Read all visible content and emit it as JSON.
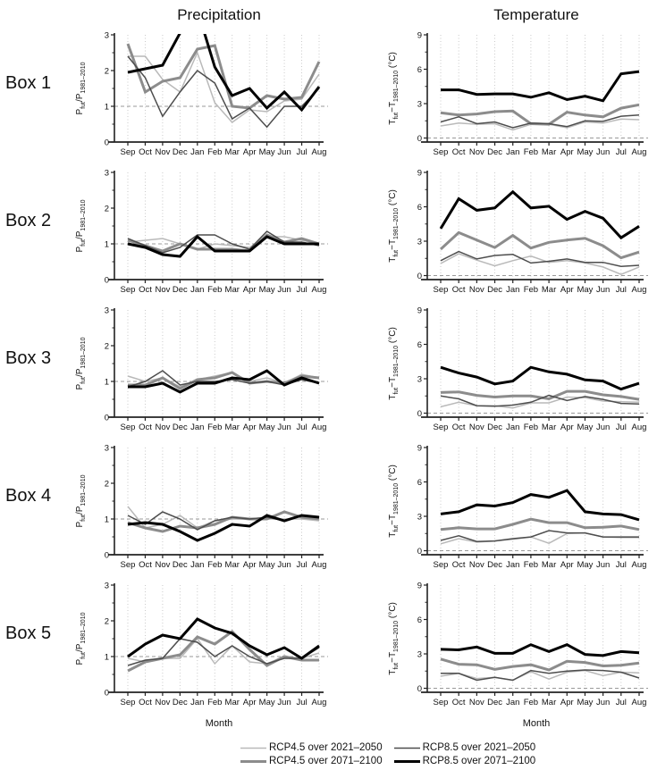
{
  "columns": {
    "left_title": "Precipitation",
    "right_title": "Temperature"
  },
  "rows": [
    "Box 1",
    "Box 2",
    "Box 3",
    "Box 4",
    "Box 5"
  ],
  "xlabel": "Month",
  "months": [
    "Sep",
    "Oct",
    "Nov",
    "Dec",
    "Jan",
    "Feb",
    "Mar",
    "Apr",
    "May",
    "Jun",
    "Jul",
    "Aug"
  ],
  "colors": {
    "rcp45_2021_2050": "#b9b9b9",
    "rcp45_2071_2100": "#8c8c8c",
    "rcp85_2021_2050": "#4d4d4d",
    "rcp85_2071_2100": "#000000",
    "gridline": "#c4c4c4",
    "refline": "#999999",
    "axis": "#222222"
  },
  "legend": {
    "items": [
      {
        "label": "RCP4.5 over 2021–2050",
        "color": "#b9b9b9",
        "width": 1.5
      },
      {
        "label": "RCP4.5 over 2071–2100",
        "color": "#8c8c8c",
        "width": 3
      },
      {
        "label": "RCP8.5 over 2021–2050",
        "color": "#4d4d4d",
        "width": 1.5
      },
      {
        "label": "RCP8.5 over 2071–2100",
        "color": "#000000",
        "width": 3
      }
    ]
  },
  "axes": {
    "precip": {
      "ylabel_segments": [
        {
          "t": "P"
        },
        {
          "t": "fut",
          "sub": true
        },
        {
          "t": "/P"
        },
        {
          "t": "1981–2010",
          "sub": true
        }
      ],
      "ylim": [
        0,
        3
      ],
      "yticks": [
        0,
        1,
        2,
        3
      ],
      "yminor": [
        0.5,
        1.5,
        2.5
      ],
      "refline": 1
    },
    "temp": {
      "ylabel_segments": [
        {
          "t": "T"
        },
        {
          "t": "fut",
          "sub": true
        },
        {
          "t": "−T"
        },
        {
          "t": "1981–2010",
          "sub": true
        },
        {
          "t": " (°C)"
        }
      ],
      "ylim": [
        -0.35,
        9
      ],
      "yticks": [
        0,
        3,
        6,
        9
      ],
      "yminor": [
        1.5,
        4.5,
        7.5
      ],
      "refline": 0
    }
  },
  "chart_data": [
    {
      "box": "Box 1",
      "panel": "Precipitation",
      "type": "line",
      "axis": "precip",
      "series": [
        {
          "name": "RCP4.5 over 2021–2050",
          "values": [
            2.4,
            2.4,
            1.75,
            1.4,
            2.5,
            1.1,
            0.55,
            0.9,
            0.85,
            1.15,
            1.2,
            1.9
          ]
        },
        {
          "name": "RCP4.5 over 2071–2100",
          "values": [
            2.75,
            1.4,
            1.7,
            1.8,
            2.6,
            2.7,
            1.0,
            0.95,
            1.3,
            1.2,
            1.25,
            2.25
          ]
        },
        {
          "name": "RCP8.5 over 2021–2050",
          "values": [
            2.4,
            1.8,
            0.72,
            1.4,
            2.0,
            1.65,
            0.65,
            0.95,
            0.42,
            1.0,
            1.0,
            1.5
          ]
        },
        {
          "name": "RCP8.5 over 2071–2100",
          "values": [
            1.95,
            2.05,
            2.15,
            3.05,
            3.7,
            2.1,
            1.3,
            1.5,
            0.95,
            1.4,
            0.9,
            1.55
          ]
        }
      ]
    },
    {
      "box": "Box 1",
      "panel": "Temperature",
      "type": "line",
      "axis": "temp",
      "series": [
        {
          "name": "RCP4.5 over 2021–2050",
          "values": [
            1.05,
            1.3,
            1.2,
            1.25,
            0.7,
            1.2,
            1.2,
            0.9,
            1.4,
            1.3,
            1.65,
            1.6
          ]
        },
        {
          "name": "RCP4.5 over 2071–2100",
          "values": [
            2.2,
            2.0,
            2.1,
            2.3,
            2.35,
            1.25,
            1.2,
            2.25,
            2.0,
            1.85,
            2.6,
            2.9
          ]
        },
        {
          "name": "RCP8.5 over 2021–2050",
          "values": [
            1.4,
            1.85,
            1.25,
            1.4,
            0.9,
            1.3,
            1.25,
            1.0,
            1.5,
            1.45,
            1.9,
            2.0
          ]
        },
        {
          "name": "RCP8.5 over 2071–2100",
          "values": [
            4.2,
            4.2,
            3.8,
            3.85,
            3.85,
            3.55,
            3.95,
            3.35,
            3.65,
            3.25,
            5.6,
            5.8
          ]
        }
      ]
    },
    {
      "box": "Box 2",
      "panel": "Precipitation",
      "type": "line",
      "axis": "precip",
      "series": [
        {
          "name": "RCP4.5 over 2021–2050",
          "values": [
            1.05,
            1.1,
            1.15,
            1.0,
            0.85,
            1.0,
            0.95,
            0.9,
            1.2,
            1.2,
            1.1,
            1.0
          ]
        },
        {
          "name": "RCP4.5 over 2071–2100",
          "values": [
            1.1,
            0.95,
            0.8,
            1.0,
            0.85,
            0.85,
            0.85,
            0.8,
            1.25,
            1.05,
            1.15,
            1.0
          ]
        },
        {
          "name": "RCP8.5 over 2021–2050",
          "values": [
            1.15,
            0.95,
            0.75,
            0.9,
            1.25,
            1.25,
            1.0,
            0.85,
            1.35,
            1.05,
            1.05,
            0.95
          ]
        },
        {
          "name": "RCP8.5 over 2071–2100",
          "values": [
            1.0,
            0.9,
            0.7,
            0.65,
            1.2,
            0.8,
            0.8,
            0.8,
            1.2,
            1.0,
            1.0,
            1.0
          ]
        }
      ]
    },
    {
      "box": "Box 2",
      "panel": "Temperature",
      "type": "line",
      "axis": "temp",
      "series": [
        {
          "name": "RCP4.5 over 2021–2050",
          "values": [
            1.05,
            1.9,
            1.35,
            0.85,
            1.3,
            1.7,
            1.15,
            1.3,
            1.1,
            0.75,
            0.1,
            0.75
          ]
        },
        {
          "name": "RCP4.5 over 2071–2100",
          "values": [
            2.3,
            3.75,
            3.1,
            2.45,
            3.5,
            2.4,
            2.9,
            3.1,
            3.25,
            2.6,
            1.55,
            2.05
          ]
        },
        {
          "name": "RCP8.5 over 2021–2050",
          "values": [
            1.3,
            2.1,
            1.45,
            1.75,
            1.85,
            1.1,
            1.25,
            1.45,
            1.15,
            1.15,
            0.8,
            0.9
          ]
        },
        {
          "name": "RCP8.5 over 2071–2100",
          "values": [
            4.1,
            6.7,
            5.7,
            5.9,
            7.3,
            5.9,
            6.05,
            4.9,
            5.6,
            5.0,
            3.3,
            4.3
          ]
        }
      ]
    },
    {
      "box": "Box 3",
      "panel": "Precipitation",
      "type": "line",
      "axis": "precip",
      "series": [
        {
          "name": "RCP4.5 over 2021–2050",
          "values": [
            1.15,
            1.0,
            1.1,
            0.85,
            1.05,
            1.15,
            1.25,
            1.0,
            1.1,
            0.95,
            1.2,
            1.1
          ]
        },
        {
          "name": "RCP4.5 over 2071–2100",
          "values": [
            0.9,
            0.9,
            1.1,
            0.8,
            1.05,
            1.1,
            1.25,
            0.95,
            1.0,
            0.95,
            1.15,
            1.1
          ]
        },
        {
          "name": "RCP8.5 over 2021–2050",
          "values": [
            0.85,
            1.0,
            1.3,
            0.9,
            1.0,
            1.0,
            1.05,
            0.95,
            1.0,
            0.9,
            1.05,
            0.95
          ]
        },
        {
          "name": "RCP8.5 over 2071–2100",
          "values": [
            0.85,
            0.85,
            0.95,
            0.7,
            0.95,
            0.95,
            1.1,
            1.05,
            1.3,
            0.9,
            1.1,
            0.95
          ]
        }
      ]
    },
    {
      "box": "Box 3",
      "panel": "Temperature",
      "type": "line",
      "axis": "temp",
      "series": [
        {
          "name": "RCP4.5 over 2021–2050",
          "values": [
            0.55,
            0.95,
            0.65,
            0.65,
            0.45,
            0.9,
            0.9,
            1.4,
            1.35,
            1.05,
            1.0,
            0.95
          ]
        },
        {
          "name": "RCP4.5 over 2071–2100",
          "values": [
            1.8,
            1.85,
            1.55,
            1.4,
            1.5,
            1.5,
            1.25,
            1.9,
            1.9,
            1.6,
            1.45,
            1.2
          ]
        },
        {
          "name": "RCP8.5 over 2021–2050",
          "values": [
            1.5,
            1.25,
            0.65,
            0.6,
            0.7,
            0.95,
            1.55,
            1.1,
            1.45,
            1.2,
            0.85,
            0.8
          ]
        },
        {
          "name": "RCP8.5 over 2071–2100",
          "values": [
            4.0,
            3.5,
            3.15,
            2.55,
            2.8,
            4.0,
            3.6,
            3.4,
            2.9,
            2.8,
            2.1,
            2.6
          ]
        }
      ]
    },
    {
      "box": "Box 4",
      "panel": "Precipitation",
      "type": "line",
      "axis": "precip",
      "series": [
        {
          "name": "RCP4.5 over 2021–2050",
          "values": [
            1.35,
            0.75,
            0.85,
            1.1,
            0.75,
            0.95,
            1.0,
            1.0,
            1.0,
            1.0,
            1.0,
            0.95
          ]
        },
        {
          "name": "RCP4.5 over 2071–2100",
          "values": [
            0.9,
            0.75,
            0.65,
            0.8,
            0.75,
            0.85,
            1.05,
            1.0,
            1.0,
            1.2,
            1.05,
            1.0
          ]
        },
        {
          "name": "RCP8.5 over 2021–2050",
          "values": [
            1.1,
            0.85,
            1.2,
            1.0,
            0.7,
            0.95,
            1.05,
            1.0,
            1.05,
            0.95,
            1.1,
            1.05
          ]
        },
        {
          "name": "RCP8.5 over 2071–2100",
          "values": [
            0.85,
            0.9,
            0.85,
            0.65,
            0.4,
            0.6,
            0.85,
            0.8,
            1.1,
            0.95,
            1.1,
            1.05
          ]
        }
      ]
    },
    {
      "box": "Box 4",
      "panel": "Temperature",
      "type": "line",
      "axis": "temp",
      "series": [
        {
          "name": "RCP4.5 over 2021–2050",
          "values": [
            0.6,
            1.05,
            0.75,
            0.85,
            1.0,
            1.2,
            0.65,
            1.5,
            1.55,
            1.2,
            1.15,
            1.15
          ]
        },
        {
          "name": "RCP4.5 over 2071–2100",
          "values": [
            1.85,
            2.0,
            1.9,
            1.9,
            2.3,
            2.75,
            2.45,
            2.45,
            2.0,
            2.05,
            2.15,
            1.85
          ]
        },
        {
          "name": "RCP8.5 over 2021–2050",
          "values": [
            0.9,
            1.3,
            0.8,
            0.85,
            1.05,
            1.2,
            1.75,
            1.55,
            1.55,
            1.2,
            1.2,
            1.2
          ]
        },
        {
          "name": "RCP8.5 over 2071–2100",
          "values": [
            3.2,
            3.4,
            4.0,
            3.9,
            4.2,
            4.9,
            4.65,
            5.25,
            3.4,
            3.2,
            3.15,
            2.7
          ]
        }
      ]
    },
    {
      "box": "Box 5",
      "panel": "Precipitation",
      "type": "line",
      "axis": "precip",
      "series": [
        {
          "name": "RCP4.5 over 2021–2050",
          "values": [
            0.95,
            0.85,
            0.95,
            0.95,
            1.5,
            0.8,
            1.3,
            0.85,
            0.8,
            1.0,
            0.95,
            1.1
          ]
        },
        {
          "name": "RCP4.5 over 2071–2100",
          "values": [
            0.6,
            0.85,
            0.95,
            1.05,
            1.55,
            1.35,
            1.7,
            1.2,
            0.75,
            1.0,
            0.9,
            0.9
          ]
        },
        {
          "name": "RCP8.5 over 2021–2050",
          "values": [
            0.75,
            0.9,
            0.95,
            1.5,
            1.4,
            1.0,
            1.3,
            1.0,
            0.8,
            0.95,
            0.95,
            1.25
          ]
        },
        {
          "name": "RCP8.5 over 2071–2100",
          "values": [
            1.0,
            1.35,
            1.6,
            1.5,
            2.05,
            1.8,
            1.65,
            1.3,
            1.05,
            1.25,
            0.95,
            1.3
          ]
        }
      ]
    },
    {
      "box": "Box 5",
      "panel": "Temperature",
      "type": "line",
      "axis": "temp",
      "series": [
        {
          "name": "RCP4.5 over 2021–2050",
          "values": [
            1.05,
            1.3,
            0.85,
            0.95,
            0.7,
            1.45,
            0.8,
            1.4,
            1.55,
            1.1,
            1.4,
            1.35
          ]
        },
        {
          "name": "RCP4.5 over 2071–2100",
          "values": [
            2.55,
            2.1,
            2.05,
            1.65,
            1.9,
            2.05,
            1.6,
            2.35,
            2.25,
            1.95,
            2.0,
            2.2
          ]
        },
        {
          "name": "RCP8.5 over 2021–2050",
          "values": [
            1.3,
            1.3,
            0.7,
            0.95,
            0.7,
            1.55,
            1.3,
            1.5,
            1.6,
            1.55,
            1.4,
            0.9
          ]
        },
        {
          "name": "RCP8.5 over 2071–2100",
          "values": [
            3.4,
            3.35,
            3.6,
            3.05,
            3.05,
            3.8,
            3.2,
            3.8,
            2.95,
            2.85,
            3.2,
            3.1
          ]
        }
      ]
    }
  ]
}
